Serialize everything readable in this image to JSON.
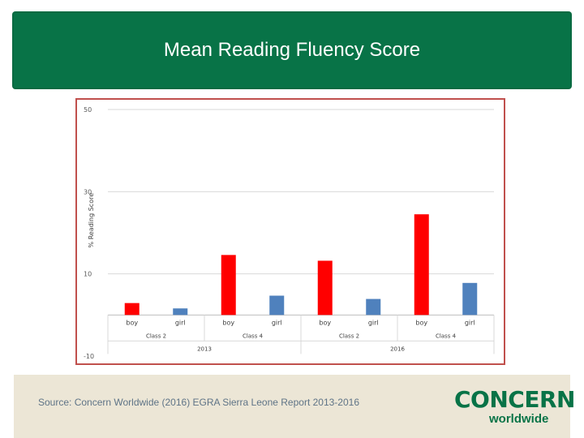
{
  "slide": {
    "title": "Mean Reading Fluency Score",
    "source": "Source: Concern Worldwide (2016) EGRA Sierra Leone Report 2013-2016",
    "logo_main": "CONCERN",
    "logo_sub": "worldwide"
  },
  "colors": {
    "title_band": "#087347",
    "frame": "#c0504d",
    "boy_bar": "#ff0000",
    "girl_bar": "#4f81bd",
    "bottom_band": "#ece6d6"
  },
  "chart_data": {
    "type": "bar",
    "ylabel": "% Reading Score",
    "ylim": [
      -10,
      50
    ],
    "yticks": [
      -10,
      10,
      30,
      50
    ],
    "grid": true,
    "categories": [
      "boy",
      "girl",
      "boy",
      "girl",
      "boy",
      "girl",
      "boy",
      "girl"
    ],
    "values": [
      2.9,
      1.6,
      14.6,
      4.7,
      13.2,
      3.9,
      24.5,
      7.8
    ],
    "bar_colors": [
      "#ff0000",
      "#4f81bd",
      "#ff0000",
      "#4f81bd",
      "#ff0000",
      "#4f81bd",
      "#ff0000",
      "#4f81bd"
    ],
    "class_labels": [
      "Class 2",
      "Class 4",
      "Class 2",
      "Class 4"
    ],
    "year_labels": [
      "2013",
      "2016"
    ]
  }
}
